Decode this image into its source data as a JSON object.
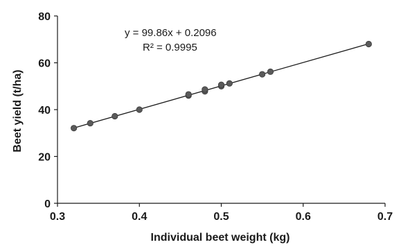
{
  "chart_data": {
    "type": "scatter",
    "title": "",
    "xlabel": "Individual beet weight (kg)",
    "ylabel": "Beet yield (t/ha)",
    "xlim": [
      0.3,
      0.7
    ],
    "ylim": [
      0,
      80
    ],
    "x_ticks": [
      0.3,
      0.4,
      0.5,
      0.6,
      0.7
    ],
    "x_tick_labels": [
      "0.3",
      "0.4",
      "0.5",
      "0.6",
      "0.7"
    ],
    "y_ticks": [
      0,
      20,
      40,
      60,
      80
    ],
    "y_tick_labels": [
      "0",
      "20",
      "40",
      "60",
      "80"
    ],
    "grid": false,
    "legend": "none",
    "points": [
      {
        "x": 0.32,
        "y": 32.1
      },
      {
        "x": 0.34,
        "y": 34.2
      },
      {
        "x": 0.37,
        "y": 37.2
      },
      {
        "x": 0.4,
        "y": 40.0
      },
      {
        "x": 0.46,
        "y": 46.0
      },
      {
        "x": 0.46,
        "y": 46.5
      },
      {
        "x": 0.48,
        "y": 47.8
      },
      {
        "x": 0.48,
        "y": 48.6
      },
      {
        "x": 0.5,
        "y": 50.0
      },
      {
        "x": 0.5,
        "y": 50.6
      },
      {
        "x": 0.51,
        "y": 51.2
      },
      {
        "x": 0.55,
        "y": 55.1
      },
      {
        "x": 0.56,
        "y": 56.2
      },
      {
        "x": 0.68,
        "y": 68.0
      }
    ],
    "trendline": {
      "type": "linear",
      "slope": 99.86,
      "intercept": 0.2096,
      "x_range": [
        0.32,
        0.68
      ]
    },
    "annotations": {
      "equation": "y = 99.86x + 0.2096",
      "r_squared": "R² = 0.9995"
    },
    "colors": {
      "marker": "#5a5a5a",
      "line": "#1a1a1a",
      "axis": "#1a1a1a"
    }
  }
}
